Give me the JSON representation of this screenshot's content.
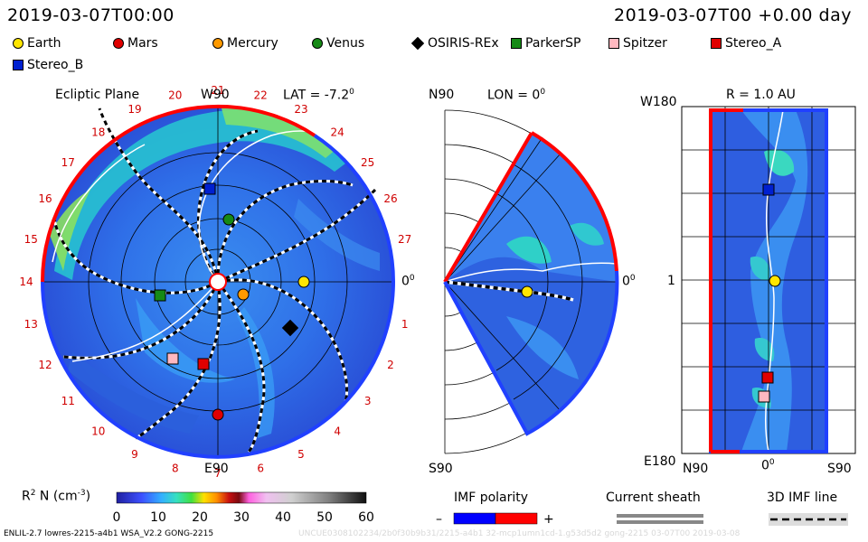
{
  "header": {
    "left_time": "2019-03-07T00:00",
    "right_time": "2019-03-07T00 +0.00 day"
  },
  "legend": [
    {
      "label": "Earth",
      "shape": "circle",
      "color": "#ffe600"
    },
    {
      "label": "Mars",
      "shape": "circle",
      "color": "#e00000"
    },
    {
      "label": "Mercury",
      "shape": "circle",
      "color": "#ff9a00"
    },
    {
      "label": "Venus",
      "shape": "circle",
      "color": "#168a16"
    },
    {
      "label": "OSIRIS-REx",
      "shape": "diamond",
      "color": "#000000"
    },
    {
      "label": "ParkerSP",
      "shape": "square",
      "color": "#168a16"
    },
    {
      "label": "Spitzer",
      "shape": "square",
      "color": "#ffb8c0"
    },
    {
      "label": "Stereo_A",
      "shape": "square",
      "color": "#e00000"
    },
    {
      "label": "Stereo_B",
      "shape": "square",
      "color": "#0020d0"
    }
  ],
  "panel_left": {
    "title": "Ecliptic Plane",
    "top_label": "W90",
    "lat_label": "LAT = -7.2",
    "degree_sup": "0",
    "right_label": "0",
    "bottom_label": "E90",
    "rim_numbers": [
      "1",
      "2",
      "3",
      "4",
      "5",
      "6",
      "7",
      "8",
      "9",
      "10",
      "11",
      "12",
      "13",
      "14",
      "15",
      "16",
      "17",
      "18",
      "19",
      "20",
      "21",
      "22",
      "23",
      "24",
      "25",
      "26",
      "27"
    ]
  },
  "panel_middle": {
    "top_label": "N90",
    "lon_label": "LON = 0",
    "degree_sup": "0",
    "right_label": "0",
    "bottom_label": "S90"
  },
  "panel_right": {
    "title": "R = 1.0 AU",
    "top_label": "W180",
    "mid_label": "1",
    "bottom_left": "E180",
    "x_left": "N90",
    "x_mid": "0",
    "x_right": "S90",
    "degree_sup": "0"
  },
  "colorbar": {
    "label": "R",
    "label_sup": "2",
    "label_rest": " N (cm",
    "label_unit_sup": "-3",
    "label_close": ")",
    "ticks": [
      "0",
      "10",
      "20",
      "30",
      "40",
      "50",
      "60"
    ]
  },
  "imf_polarity": {
    "title": "IMF polarity",
    "minus": "–",
    "plus": "+",
    "colors": [
      "#0000ff",
      "#ff0000"
    ]
  },
  "current_sheath": {
    "title": "Current sheath"
  },
  "imf_line": {
    "title": "3D IMF line"
  },
  "footer": {
    "left": "ENLIL-2.7 lowres-2215-a4b1 WSA_V2.2 GONG-2215",
    "right": "UNCUE0308102234/2b0f30b9b31/2215-a4b1 32-mcp1umn1cd-1.g53d5d2 gong-2215 03-07T00   2019-03-08"
  },
  "chart_data": {
    "type": "heatmap",
    "title": "Ecliptic Plane",
    "colorbar_range": [
      0,
      60
    ],
    "colorbar_ticks": [
      0,
      10,
      20,
      30,
      40,
      50,
      60
    ],
    "positions": [
      {
        "name": "Earth",
        "panel": "ecliptic",
        "rim_angle_deg": 0,
        "r_au": 1.0
      },
      {
        "name": "Stereo_B",
        "panel": "ecliptic",
        "r_au": 1.0
      },
      {
        "name": "Stereo_A",
        "panel": "ecliptic",
        "r_au": 1.0
      }
    ]
  }
}
